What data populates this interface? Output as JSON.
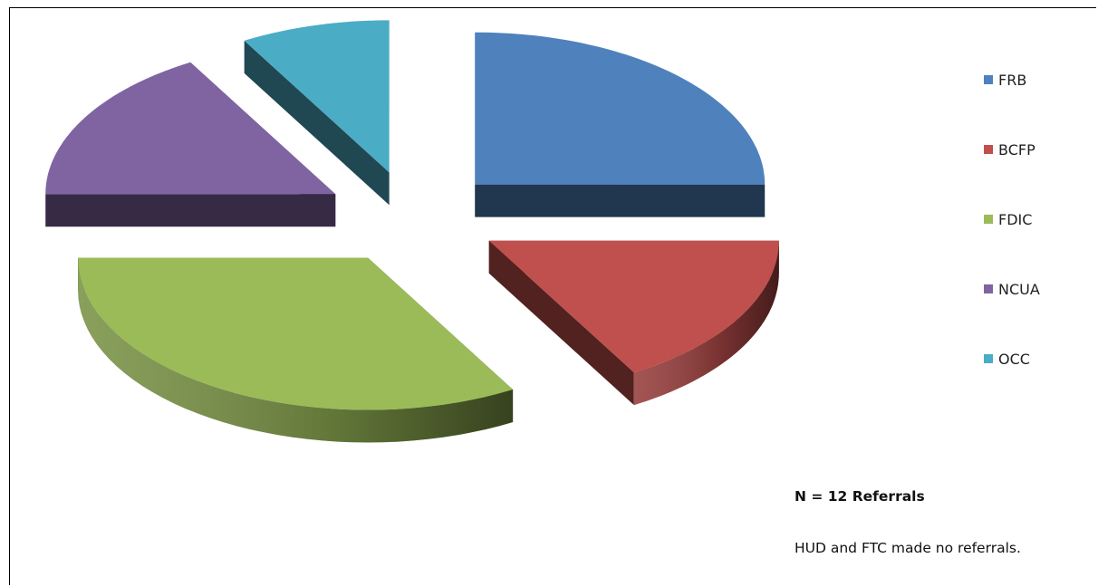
{
  "chart_data": {
    "type": "pie",
    "style": "3d-exploded",
    "slices": [
      {
        "label": "FRB",
        "value": 3,
        "color": "#4F81BD"
      },
      {
        "label": "BCFP",
        "value": 2,
        "color": "#C0504D"
      },
      {
        "label": "FDIC",
        "value": 4,
        "color": "#9BBB59"
      },
      {
        "label": "NCUA",
        "value": 2,
        "color": "#8064A2"
      },
      {
        "label": "OCC",
        "value": 1,
        "color": "#4BACC6"
      }
    ],
    "legend_position": "right",
    "annotations": {
      "total": "N = 12 Referrals",
      "note": "HUD and FTC made no referrals."
    }
  }
}
